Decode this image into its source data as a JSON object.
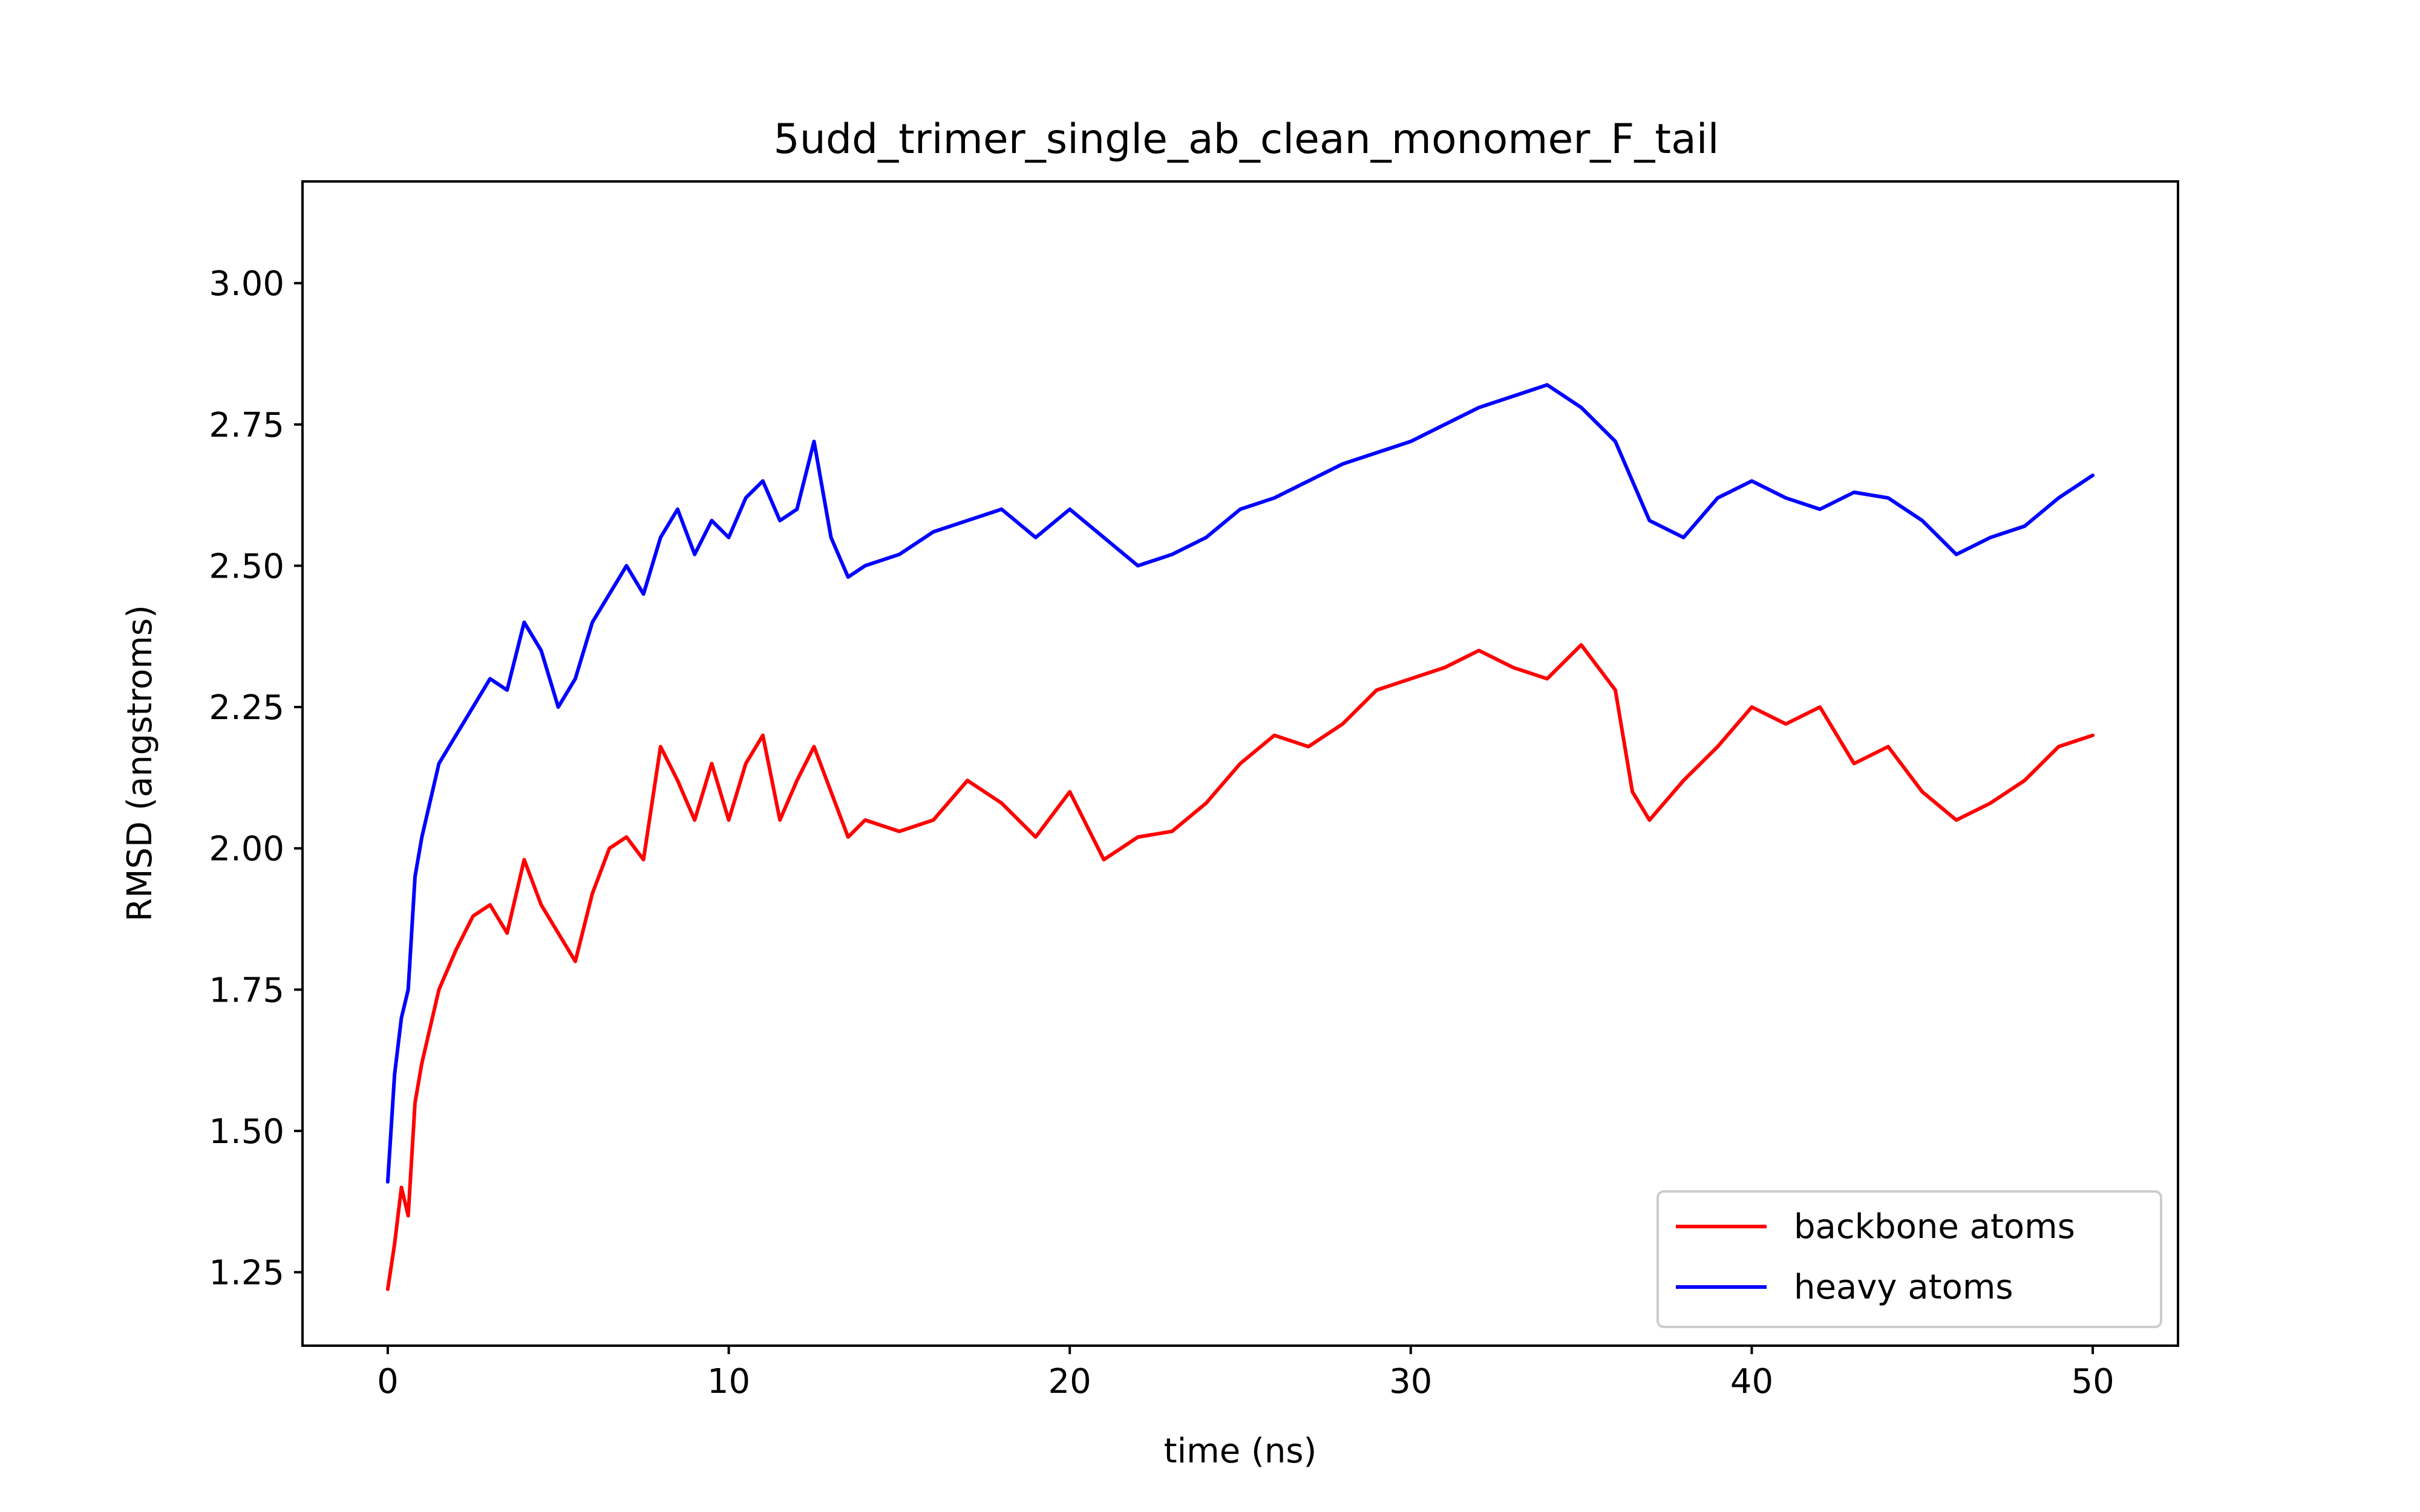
{
  "chart_data": {
    "type": "line",
    "title": "5udd_trimer_single_ab_clean_monomer_F_tail",
    "xlabel": "time (ns)",
    "ylabel": "RMSD (angstroms)",
    "xlim": [
      -2.5,
      52.5
    ],
    "ylim": [
      1.12,
      3.18
    ],
    "xticks": [
      0,
      10,
      20,
      30,
      40,
      50
    ],
    "yticks": [
      1.25,
      1.5,
      1.75,
      2.0,
      2.25,
      2.5,
      2.75,
      3.0
    ],
    "xtick_labels": [
      "0",
      "10",
      "20",
      "30",
      "40",
      "50"
    ],
    "ytick_labels": [
      "1.25",
      "1.50",
      "1.75",
      "2.00",
      "2.25",
      "2.50",
      "2.75",
      "3.00"
    ],
    "legend_position": "lower-right",
    "grid": false,
    "colors": {
      "backbone atoms": "#ff0000",
      "heavy atoms": "#0000ff",
      "axes": "#000000",
      "legend_border": "#cccccc"
    },
    "series": [
      {
        "name": "backbone atoms",
        "color": "#ff0000",
        "x": [
          0,
          0.2,
          0.4,
          0.6,
          0.8,
          1,
          1.5,
          2,
          2.5,
          3,
          3.5,
          4,
          4.5,
          5,
          5.5,
          6,
          6.5,
          7,
          7.5,
          8,
          8.5,
          9,
          9.5,
          10,
          10.5,
          11,
          11.5,
          12,
          12.5,
          13,
          13.5,
          14,
          15,
          16,
          17,
          18,
          19,
          20,
          21,
          22,
          23,
          24,
          25,
          26,
          27,
          28,
          29,
          30,
          31,
          32,
          33,
          34,
          35,
          36,
          36.5,
          37,
          38,
          39,
          40,
          41,
          42,
          43,
          44,
          45,
          46,
          47,
          48,
          49,
          50
        ],
        "values": [
          1.22,
          1.3,
          1.4,
          1.35,
          1.55,
          1.62,
          1.75,
          1.82,
          1.88,
          1.9,
          1.85,
          1.98,
          1.9,
          1.85,
          1.8,
          1.92,
          2.0,
          2.02,
          1.98,
          2.18,
          2.12,
          2.05,
          2.15,
          2.05,
          2.15,
          2.2,
          2.05,
          2.12,
          2.18,
          2.1,
          2.02,
          2.05,
          2.03,
          2.05,
          2.12,
          2.08,
          2.02,
          2.1,
          1.98,
          2.02,
          2.03,
          2.08,
          2.15,
          2.2,
          2.18,
          2.22,
          2.28,
          2.3,
          2.32,
          2.35,
          2.32,
          2.3,
          2.36,
          2.28,
          2.1,
          2.05,
          2.12,
          2.18,
          2.25,
          2.22,
          2.25,
          2.15,
          2.18,
          2.1,
          2.05,
          2.08,
          2.12,
          2.18,
          2.2
        ]
      },
      {
        "name": "heavy atoms",
        "color": "#0000ff",
        "x": [
          0,
          0.2,
          0.4,
          0.6,
          0.8,
          1,
          1.5,
          2,
          2.5,
          3,
          3.5,
          4,
          4.5,
          5,
          5.5,
          6,
          6.5,
          7,
          7.5,
          8,
          8.5,
          9,
          9.5,
          10,
          10.5,
          11,
          11.5,
          12,
          12.5,
          13,
          13.5,
          14,
          15,
          16,
          17,
          18,
          19,
          20,
          21,
          22,
          23,
          24,
          25,
          26,
          27,
          28,
          29,
          30,
          31,
          32,
          33,
          34,
          35,
          36,
          36.5,
          37,
          38,
          39,
          40,
          41,
          42,
          43,
          44,
          45,
          46,
          47,
          48,
          49,
          50
        ],
        "values": [
          1.41,
          1.6,
          1.7,
          1.75,
          1.95,
          2.02,
          2.15,
          2.2,
          2.25,
          2.3,
          2.28,
          2.4,
          2.35,
          2.25,
          2.3,
          2.4,
          2.45,
          2.5,
          2.45,
          2.55,
          2.6,
          2.52,
          2.58,
          2.55,
          2.62,
          2.65,
          2.58,
          2.6,
          2.72,
          2.55,
          2.48,
          2.5,
          2.52,
          2.56,
          2.58,
          2.6,
          2.55,
          2.6,
          2.55,
          2.5,
          2.52,
          2.55,
          2.6,
          2.62,
          2.65,
          2.68,
          2.7,
          2.72,
          2.75,
          2.78,
          2.8,
          2.82,
          2.78,
          2.72,
          2.65,
          2.58,
          2.55,
          2.62,
          2.65,
          2.62,
          2.6,
          2.63,
          2.62,
          2.58,
          2.52,
          2.55,
          2.57,
          2.62,
          2.66
        ]
      }
    ]
  }
}
